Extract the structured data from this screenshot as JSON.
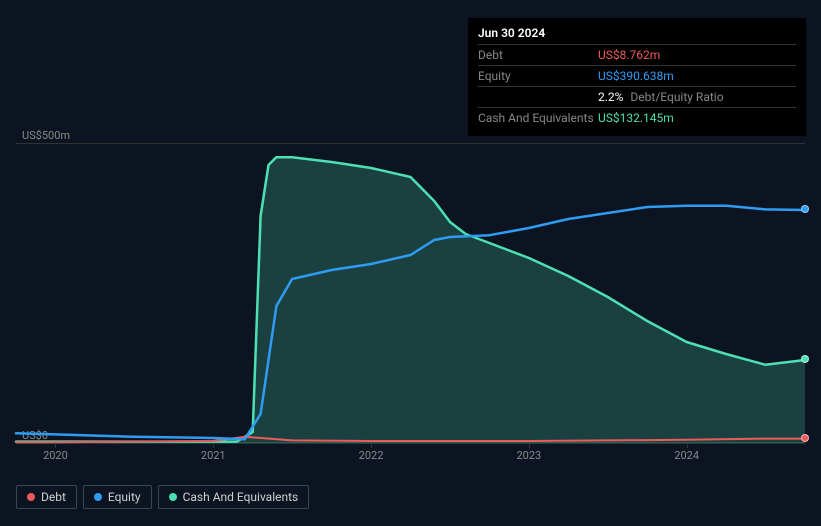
{
  "tooltip": {
    "date": "Jun 30 2024",
    "rows": [
      {
        "label": "Debt",
        "value": "US$8.762m",
        "colorClass": "val-red"
      },
      {
        "label": "Equity",
        "value": "US$390.638m",
        "colorClass": "val-blue"
      },
      {
        "label": "",
        "value": "2.2%",
        "extra": "Debt/Equity Ratio",
        "colorClass": ""
      },
      {
        "label": "Cash And Equivalents",
        "value": "US$132.145m",
        "colorClass": "val-teal"
      }
    ]
  },
  "chart": {
    "type": "line-area",
    "background": "#0d1421",
    "grid_color": "#333333",
    "y_axis": {
      "min": 0,
      "max": 500,
      "labels": [
        {
          "text": "US$500m",
          "value": 500
        },
        {
          "text": "US$0",
          "value": 0
        }
      ]
    },
    "x_axis": {
      "min": 2019.75,
      "max": 2024.75,
      "ticks": [
        {
          "label": "2020",
          "value": 2020
        },
        {
          "label": "2021",
          "value": 2021
        },
        {
          "label": "2022",
          "value": 2022
        },
        {
          "label": "2023",
          "value": 2023
        },
        {
          "label": "2024",
          "value": 2024
        }
      ]
    },
    "series": {
      "debt": {
        "color": "#eb5b5b",
        "fill": false,
        "line_width": 2,
        "points": [
          [
            2019.75,
            3
          ],
          [
            2020.0,
            3
          ],
          [
            2020.5,
            4
          ],
          [
            2021.0,
            5
          ],
          [
            2021.2,
            12
          ],
          [
            2021.3,
            10
          ],
          [
            2021.5,
            6
          ],
          [
            2022.0,
            5
          ],
          [
            2022.5,
            5
          ],
          [
            2023.0,
            5
          ],
          [
            2023.5,
            6
          ],
          [
            2024.0,
            7
          ],
          [
            2024.5,
            9
          ],
          [
            2024.75,
            9
          ]
        ]
      },
      "equity": {
        "color": "#2f9cf4",
        "fill": false,
        "line_width": 2.5,
        "points": [
          [
            2019.75,
            18
          ],
          [
            2020.0,
            16
          ],
          [
            2020.5,
            12
          ],
          [
            2021.0,
            10
          ],
          [
            2021.2,
            8
          ],
          [
            2021.3,
            50
          ],
          [
            2021.4,
            230
          ],
          [
            2021.5,
            275
          ],
          [
            2021.75,
            290
          ],
          [
            2022.0,
            300
          ],
          [
            2022.25,
            315
          ],
          [
            2022.4,
            340
          ],
          [
            2022.5,
            345
          ],
          [
            2022.75,
            348
          ],
          [
            2023.0,
            360
          ],
          [
            2023.25,
            375
          ],
          [
            2023.5,
            385
          ],
          [
            2023.75,
            395
          ],
          [
            2024.0,
            397
          ],
          [
            2024.25,
            397
          ],
          [
            2024.5,
            391
          ],
          [
            2024.75,
            390
          ]
        ]
      },
      "cash": {
        "color": "#4ce0b3",
        "fill": true,
        "fill_color": "rgba(76, 224, 179, 0.22)",
        "line_width": 2.5,
        "points": [
          [
            2019.75,
            4
          ],
          [
            2020.0,
            4
          ],
          [
            2020.5,
            4
          ],
          [
            2021.0,
            4
          ],
          [
            2021.15,
            4
          ],
          [
            2021.25,
            20
          ],
          [
            2021.3,
            380
          ],
          [
            2021.35,
            465
          ],
          [
            2021.4,
            478
          ],
          [
            2021.5,
            478
          ],
          [
            2021.75,
            470
          ],
          [
            2022.0,
            460
          ],
          [
            2022.25,
            445
          ],
          [
            2022.4,
            405
          ],
          [
            2022.5,
            370
          ],
          [
            2022.6,
            350
          ],
          [
            2022.75,
            335
          ],
          [
            2023.0,
            310
          ],
          [
            2023.25,
            280
          ],
          [
            2023.5,
            245
          ],
          [
            2023.75,
            205
          ],
          [
            2024.0,
            170
          ],
          [
            2024.25,
            150
          ],
          [
            2024.5,
            132
          ],
          [
            2024.75,
            140
          ]
        ]
      }
    },
    "end_dots": [
      {
        "series": "debt",
        "color": "#eb5b5b"
      },
      {
        "series": "equity",
        "color": "#2f9cf4"
      },
      {
        "series": "cash",
        "color": "#4ce0b3"
      }
    ]
  },
  "legend": [
    {
      "label": "Debt",
      "color": "#eb5b5b"
    },
    {
      "label": "Equity",
      "color": "#2f9cf4"
    },
    {
      "label": "Cash And Equivalents",
      "color": "#4ce0b3"
    }
  ]
}
